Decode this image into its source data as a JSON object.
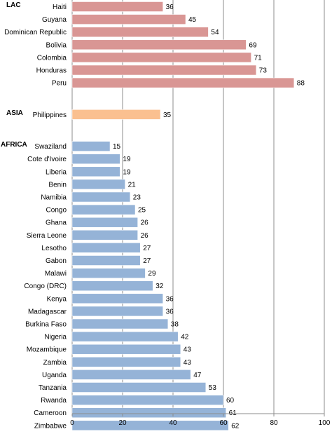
{
  "chart_data": {
    "type": "bar",
    "orientation": "horizontal",
    "xlim": [
      0,
      100
    ],
    "x_ticks": [
      0,
      20,
      40,
      60,
      80,
      100
    ],
    "grid": "vertical",
    "groups": [
      {
        "region": "LAC",
        "color": "#d99694",
        "bars": [
          {
            "label": "Haiti",
            "value": 36
          },
          {
            "label": "Guyana",
            "value": 45
          },
          {
            "label": "Dominican Republic",
            "value": 54
          },
          {
            "label": "Bolivia",
            "value": 69
          },
          {
            "label": "Colombia",
            "value": 71
          },
          {
            "label": "Honduras",
            "value": 73
          },
          {
            "label": "Peru",
            "value": 88
          }
        ]
      },
      {
        "region": "ASIA",
        "color": "#fac090",
        "bars": [
          {
            "label": "Philippines",
            "value": 35
          }
        ]
      },
      {
        "region": "AFRICA",
        "color": "#95b3d7",
        "bars": [
          {
            "label": "Swaziland",
            "value": 15
          },
          {
            "label": "Cote d'Ivoire",
            "value": 19
          },
          {
            "label": "Liberia",
            "value": 19
          },
          {
            "label": "Benin",
            "value": 21
          },
          {
            "label": "Namibia",
            "value": 23
          },
          {
            "label": "Congo",
            "value": 25
          },
          {
            "label": "Ghana",
            "value": 26
          },
          {
            "label": "Sierra Leone",
            "value": 26
          },
          {
            "label": "Lesotho",
            "value": 27
          },
          {
            "label": "Gabon",
            "value": 27
          },
          {
            "label": "Malawi",
            "value": 29
          },
          {
            "label": "Congo (DRC)",
            "value": 32
          },
          {
            "label": "Kenya",
            "value": 36
          },
          {
            "label": "Madagascar",
            "value": 36
          },
          {
            "label": "Burkina Faso",
            "value": 38
          },
          {
            "label": "Nigeria",
            "value": 42
          },
          {
            "label": "Mozambique",
            "value": 43
          },
          {
            "label": "Zambia",
            "value": 43
          },
          {
            "label": "Uganda",
            "value": 47
          },
          {
            "label": "Tanzania",
            "value": 53
          },
          {
            "label": "Rwanda",
            "value": 60
          },
          {
            "label": "Cameroon",
            "value": 61
          },
          {
            "label": "Zimbabwe",
            "value": 62
          }
        ]
      }
    ]
  }
}
